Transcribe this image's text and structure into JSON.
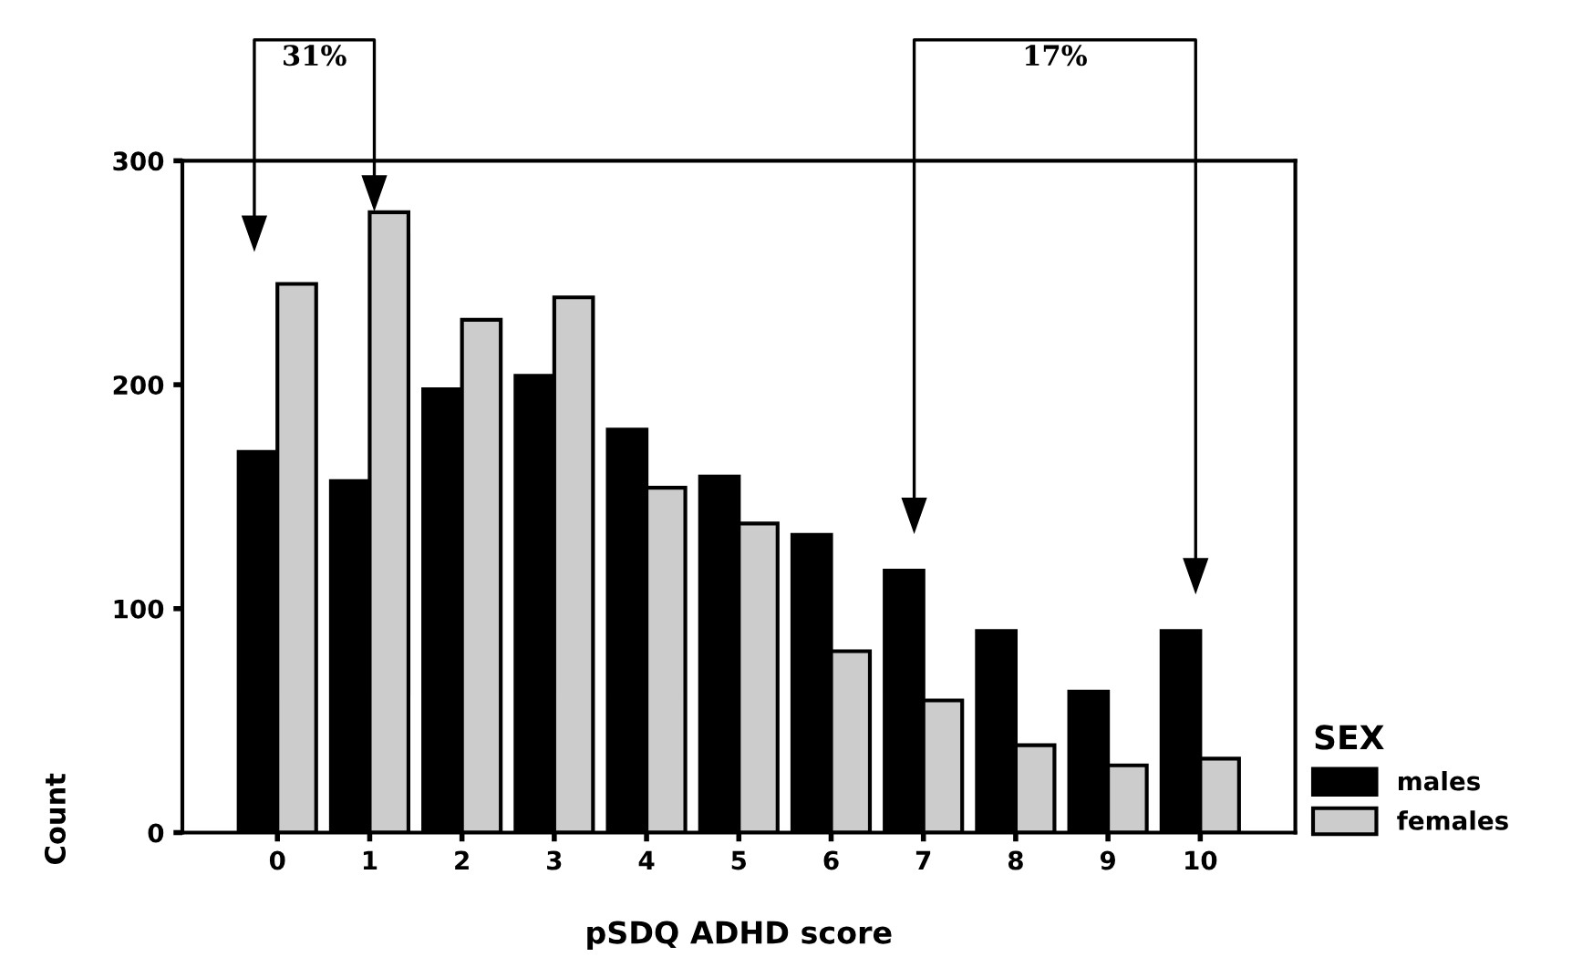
{
  "chart_data": {
    "type": "bar",
    "xlabel": "pSDQ ADHD score",
    "ylabel": "Count",
    "legend_title": "SEX",
    "categories": [
      "0",
      "1",
      "2",
      "3",
      "4",
      "5",
      "6",
      "7",
      "8",
      "9",
      "10"
    ],
    "series": [
      {
        "name": "males",
        "color": "#000000",
        "values": [
          170,
          157,
          198,
          204,
          180,
          159,
          133,
          117,
          90,
          63,
          90
        ]
      },
      {
        "name": "females",
        "color": "#cccccc",
        "values": [
          245,
          277,
          229,
          239,
          154,
          138,
          81,
          59,
          39,
          30,
          33
        ]
      }
    ],
    "ylim": [
      0,
      300
    ],
    "yticks": [
      0,
      100,
      200,
      300
    ],
    "legend": "bottom right",
    "grid": false,
    "annotations": [
      "31%",
      "17%"
    ]
  }
}
